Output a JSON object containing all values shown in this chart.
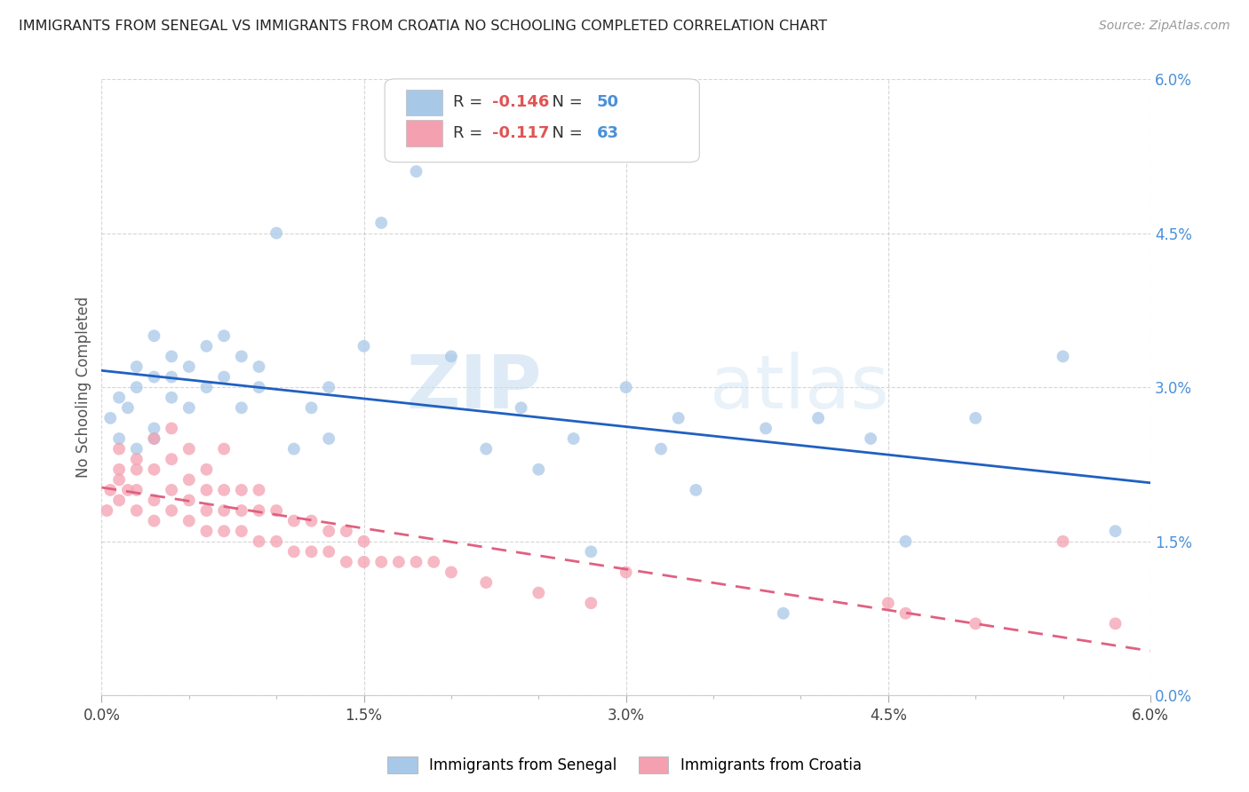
{
  "title": "IMMIGRANTS FROM SENEGAL VS IMMIGRANTS FROM CROATIA NO SCHOOLING COMPLETED CORRELATION CHART",
  "source": "Source: ZipAtlas.com",
  "ylabel": "No Schooling Completed",
  "legend_label1": "Immigrants from Senegal",
  "legend_label2": "Immigrants from Croatia",
  "R1": -0.146,
  "N1": 50,
  "R2": -0.117,
  "N2": 63,
  "color1": "#a8c8e8",
  "color2": "#f4a0b0",
  "line_color1": "#2060c0",
  "line_color2": "#e06080",
  "xlim": [
    0.0,
    0.06
  ],
  "ylim": [
    0.0,
    0.06
  ],
  "xtick_vals": [
    0.0,
    0.015,
    0.03,
    0.045,
    0.06
  ],
  "xtick_labels": [
    "0.0%",
    "1.5%",
    "3.0%",
    "4.5%",
    "6.0%"
  ],
  "ytick_vals": [
    0.0,
    0.015,
    0.03,
    0.045,
    0.06
  ],
  "ytick_labels": [
    "0.0%",
    "1.5%",
    "3.0%",
    "4.5%",
    "6.0%"
  ],
  "watermark_zip": "ZIP",
  "watermark_atlas": "atlas",
  "senegal_x": [
    0.0005,
    0.001,
    0.001,
    0.0015,
    0.002,
    0.002,
    0.002,
    0.003,
    0.003,
    0.003,
    0.003,
    0.004,
    0.004,
    0.004,
    0.005,
    0.005,
    0.006,
    0.006,
    0.007,
    0.007,
    0.008,
    0.008,
    0.009,
    0.009,
    0.01,
    0.011,
    0.012,
    0.013,
    0.013,
    0.015,
    0.016,
    0.018,
    0.02,
    0.022,
    0.024,
    0.025,
    0.027,
    0.028,
    0.03,
    0.032,
    0.033,
    0.034,
    0.038,
    0.039,
    0.041,
    0.044,
    0.046,
    0.05,
    0.055,
    0.058
  ],
  "senegal_y": [
    0.027,
    0.025,
    0.029,
    0.028,
    0.024,
    0.03,
    0.032,
    0.026,
    0.031,
    0.025,
    0.035,
    0.029,
    0.033,
    0.031,
    0.028,
    0.032,
    0.03,
    0.034,
    0.035,
    0.031,
    0.033,
    0.028,
    0.03,
    0.032,
    0.045,
    0.024,
    0.028,
    0.03,
    0.025,
    0.034,
    0.046,
    0.051,
    0.033,
    0.024,
    0.028,
    0.022,
    0.025,
    0.014,
    0.03,
    0.024,
    0.027,
    0.02,
    0.026,
    0.008,
    0.027,
    0.025,
    0.015,
    0.027,
    0.033,
    0.016
  ],
  "croatia_x": [
    0.0003,
    0.0005,
    0.001,
    0.001,
    0.001,
    0.001,
    0.0015,
    0.002,
    0.002,
    0.002,
    0.002,
    0.003,
    0.003,
    0.003,
    0.003,
    0.004,
    0.004,
    0.004,
    0.004,
    0.005,
    0.005,
    0.005,
    0.005,
    0.006,
    0.006,
    0.006,
    0.006,
    0.007,
    0.007,
    0.007,
    0.007,
    0.008,
    0.008,
    0.008,
    0.009,
    0.009,
    0.009,
    0.01,
    0.01,
    0.011,
    0.011,
    0.012,
    0.012,
    0.013,
    0.013,
    0.014,
    0.014,
    0.015,
    0.015,
    0.016,
    0.017,
    0.018,
    0.019,
    0.02,
    0.022,
    0.025,
    0.028,
    0.03,
    0.045,
    0.046,
    0.05,
    0.055,
    0.058
  ],
  "croatia_y": [
    0.018,
    0.02,
    0.019,
    0.022,
    0.024,
    0.021,
    0.02,
    0.018,
    0.02,
    0.022,
    0.023,
    0.017,
    0.019,
    0.022,
    0.025,
    0.018,
    0.02,
    0.023,
    0.026,
    0.017,
    0.019,
    0.021,
    0.024,
    0.016,
    0.018,
    0.02,
    0.022,
    0.016,
    0.018,
    0.02,
    0.024,
    0.016,
    0.018,
    0.02,
    0.015,
    0.018,
    0.02,
    0.015,
    0.018,
    0.014,
    0.017,
    0.014,
    0.017,
    0.014,
    0.016,
    0.013,
    0.016,
    0.013,
    0.015,
    0.013,
    0.013,
    0.013,
    0.013,
    0.012,
    0.011,
    0.01,
    0.009,
    0.012,
    0.009,
    0.008,
    0.007,
    0.015,
    0.007
  ]
}
